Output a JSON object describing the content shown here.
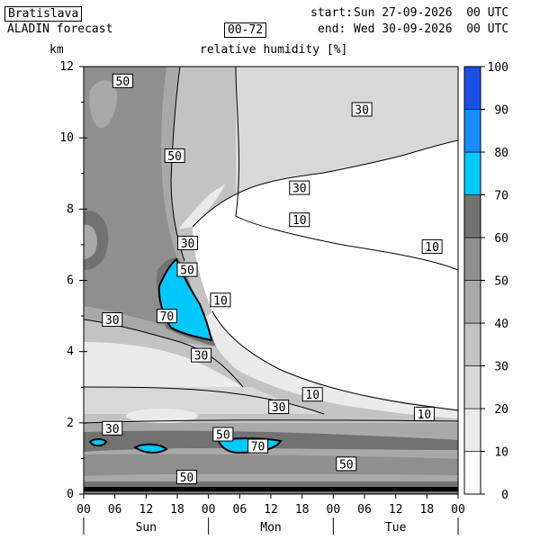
{
  "header": {
    "station": "Bratislava",
    "model": "ALADIN forecast",
    "range": "00-72",
    "start_label": "start:",
    "start_value": "Sun 27-09-2026  00 UTC",
    "end_label": "end:",
    "end_value": "Wed 30-09-2026  00 UTC"
  },
  "chart_data": {
    "type": "heatmap",
    "title": "relative humidity [%]",
    "ylabel": "km",
    "ylim": [
      0,
      12
    ],
    "xlim": [
      0,
      72
    ],
    "y_ticks": [
      "0",
      "2",
      "4",
      "6",
      "8",
      "10",
      "12"
    ],
    "x_ticks": [
      "00",
      "06",
      "12",
      "18",
      "00",
      "06",
      "12",
      "18",
      "00",
      "06",
      "12",
      "18",
      "00"
    ],
    "days": [
      "Sun",
      "Mon",
      "Tue"
    ],
    "colorbar": {
      "levels": [
        "0",
        "10",
        "20",
        "30",
        "40",
        "50",
        "60",
        "70",
        "80",
        "90",
        "100"
      ],
      "colors": [
        "#ffffff",
        "#ebebeb",
        "#d8d8d8",
        "#c3c3c3",
        "#a9a9a9",
        "#8f8f8f",
        "#727272",
        "#00c8ff",
        "#1a8cff",
        "#1e50e6"
      ]
    },
    "contour_labels": [
      {
        "text": "50",
        "x": 7.5,
        "y": 11.6
      },
      {
        "text": "30",
        "x": 53.5,
        "y": 10.8
      },
      {
        "text": "50",
        "x": 17.5,
        "y": 9.5
      },
      {
        "text": "30",
        "x": 41.5,
        "y": 8.6
      },
      {
        "text": "10",
        "x": 41.5,
        "y": 7.7
      },
      {
        "text": "30",
        "x": 20.0,
        "y": 7.05
      },
      {
        "text": "10",
        "x": 67.0,
        "y": 6.95
      },
      {
        "text": "50",
        "x": 19.9,
        "y": 6.3
      },
      {
        "text": "10",
        "x": 26.3,
        "y": 5.45
      },
      {
        "text": "70",
        "x": 16.0,
        "y": 5.0
      },
      {
        "text": "30",
        "x": 5.5,
        "y": 4.9
      },
      {
        "text": "30",
        "x": 22.6,
        "y": 3.9
      },
      {
        "text": "10",
        "x": 44.0,
        "y": 2.8
      },
      {
        "text": "30",
        "x": 37.5,
        "y": 2.45
      },
      {
        "text": "10",
        "x": 65.5,
        "y": 2.25
      },
      {
        "text": "30",
        "x": 5.5,
        "y": 1.85
      },
      {
        "text": "50",
        "x": 26.8,
        "y": 1.68
      },
      {
        "text": "70",
        "x": 33.5,
        "y": 1.35
      },
      {
        "text": "50",
        "x": 50.5,
        "y": 0.85
      },
      {
        "text": "50",
        "x": 19.8,
        "y": 0.48
      }
    ]
  }
}
